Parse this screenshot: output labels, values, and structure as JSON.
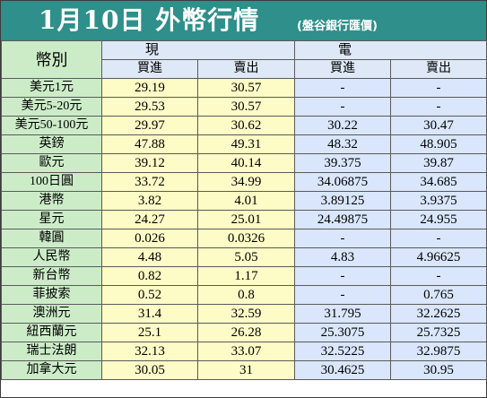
{
  "title": "1月10日 外幣行情",
  "source": "(盤谷銀行匯價)",
  "headers": {
    "currency": "幣別",
    "cash": "現　　鈔",
    "telegraphic": "電　　匯",
    "buy": "買進",
    "sell": "賣出"
  },
  "rows": [
    {
      "currency": "美元1元",
      "cash_buy": "29.19",
      "cash_sell": "30.57",
      "tt_buy": "-",
      "tt_sell": "-"
    },
    {
      "currency": "美元5-20元",
      "cash_buy": "29.53",
      "cash_sell": "30.57",
      "tt_buy": "-",
      "tt_sell": "-"
    },
    {
      "currency": "美元50-100元",
      "cash_buy": "29.97",
      "cash_sell": "30.62",
      "tt_buy": "30.22",
      "tt_sell": "30.47"
    },
    {
      "currency": "英鎊",
      "cash_buy": "47.88",
      "cash_sell": "49.31",
      "tt_buy": "48.32",
      "tt_sell": "48.905"
    },
    {
      "currency": "歐元",
      "cash_buy": "39.12",
      "cash_sell": "40.14",
      "tt_buy": "39.375",
      "tt_sell": "39.87"
    },
    {
      "currency": "100日圓",
      "cash_buy": "33.72",
      "cash_sell": "34.99",
      "tt_buy": "34.06875",
      "tt_sell": "34.685"
    },
    {
      "currency": "港幣",
      "cash_buy": "3.82",
      "cash_sell": "4.01",
      "tt_buy": "3.89125",
      "tt_sell": "3.9375"
    },
    {
      "currency": "星元",
      "cash_buy": "24.27",
      "cash_sell": "25.01",
      "tt_buy": "24.49875",
      "tt_sell": "24.955"
    },
    {
      "currency": "韓圓",
      "cash_buy": "0.026",
      "cash_sell": "0.0326",
      "tt_buy": "-",
      "tt_sell": "-"
    },
    {
      "currency": "人民幣",
      "cash_buy": "4.48",
      "cash_sell": "5.05",
      "tt_buy": "4.83",
      "tt_sell": "4.96625"
    },
    {
      "currency": "新台幣",
      "cash_buy": "0.82",
      "cash_sell": "1.17",
      "tt_buy": "-",
      "tt_sell": "-"
    },
    {
      "currency": "菲披索",
      "cash_buy": "0.52",
      "cash_sell": "0.8",
      "tt_buy": "-",
      "tt_sell": "0.765"
    },
    {
      "currency": "澳洲元",
      "cash_buy": "31.4",
      "cash_sell": "32.59",
      "tt_buy": "31.795",
      "tt_sell": "32.2625"
    },
    {
      "currency": "紐西蘭元",
      "cash_buy": "25.1",
      "cash_sell": "26.28",
      "tt_buy": "25.3075",
      "tt_sell": "25.7325"
    },
    {
      "currency": "瑞士法朗",
      "cash_buy": "32.13",
      "cash_sell": "33.07",
      "tt_buy": "32.5225",
      "tt_sell": "32.9875"
    },
    {
      "currency": "加拿大元",
      "cash_buy": "30.05",
      "cash_sell": "31",
      "tt_buy": "30.4625",
      "tt_sell": "30.95"
    }
  ],
  "colors": {
    "title_bg": "#2f8f8a",
    "title_text": "#ffffff",
    "currency_bg": "#ccecc8",
    "cash_bg": "#fdfbc6",
    "tt_bg": "#d9e6fb",
    "header_bg": "#dfe8f7"
  }
}
